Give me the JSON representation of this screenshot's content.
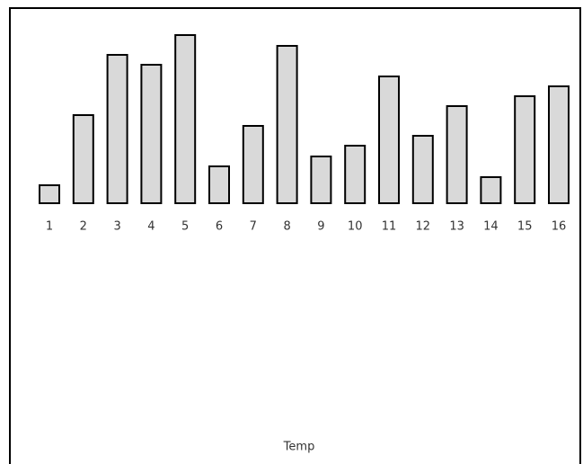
{
  "chart_data": {
    "type": "bar",
    "x_label": "Temp",
    "categories": [
      "1",
      "2",
      "3",
      "4",
      "5",
      "6",
      "7",
      "8",
      "9",
      "10",
      "11",
      "12",
      "13",
      "14",
      "15",
      "16"
    ],
    "values": [
      20,
      98,
      165,
      154,
      187,
      41,
      86,
      175,
      52,
      64,
      141,
      75,
      108,
      29,
      119,
      130
    ],
    "color": "#d9d9d9"
  }
}
